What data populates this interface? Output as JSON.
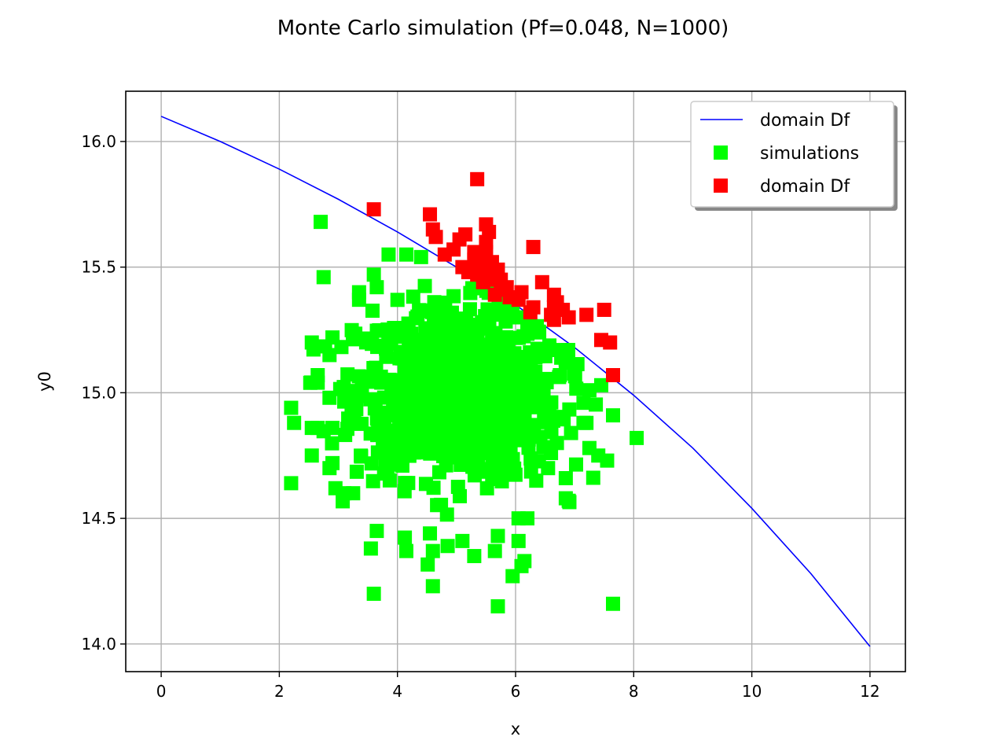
{
  "chart_data": {
    "type": "scatter",
    "title": "Monte Carlo simulation (Pf=0.048, N=1000)",
    "xlabel": "x",
    "ylabel": "y0",
    "xlim": [
      -0.6,
      12.6
    ],
    "ylim": [
      13.89,
      16.2
    ],
    "xticks": [
      0,
      2,
      4,
      6,
      8,
      10,
      12
    ],
    "yticks": [
      14.0,
      14.5,
      15.0,
      15.5,
      16.0
    ],
    "xtick_labels": [
      "0",
      "2",
      "4",
      "6",
      "8",
      "10",
      "12"
    ],
    "ytick_labels": [
      "14.0",
      "14.5",
      "15.0",
      "15.5",
      "16.0"
    ],
    "grid": true,
    "legend_position": "top-right",
    "legend": [
      {
        "label": "domain Df",
        "marker": "line",
        "color": "#0000ff"
      },
      {
        "label": "simulations",
        "marker": "square",
        "color": "#00ff00"
      },
      {
        "label": "domain Df",
        "marker": "square",
        "color": "#ff0000"
      }
    ],
    "series": [
      {
        "name": "domain Df",
        "kind": "line",
        "color": "#0000ff",
        "x": [
          0,
          1,
          2,
          3,
          4,
          5,
          6,
          7,
          8,
          9,
          10,
          11,
          12
        ],
        "y": [
          16.1,
          16.0,
          15.89,
          15.77,
          15.64,
          15.5,
          15.35,
          15.18,
          14.99,
          14.78,
          14.54,
          14.28,
          13.99
        ]
      },
      {
        "name": "simulations",
        "kind": "scatter",
        "color": "#00ff00",
        "count": 952,
        "center": [
          5.0,
          15.0
        ],
        "spread": [
          1.0,
          0.2
        ],
        "points": [
          [
            2.7,
            15.68
          ],
          [
            2.75,
            15.46
          ],
          [
            3.6,
            15.47
          ],
          [
            3.85,
            15.55
          ],
          [
            4.15,
            15.55
          ],
          [
            4.4,
            15.54
          ],
          [
            3.35,
            15.4
          ],
          [
            3.35,
            15.37
          ],
          [
            3.65,
            15.42
          ],
          [
            2.55,
            15.2
          ],
          [
            2.85,
            15.15
          ],
          [
            2.9,
            15.22
          ],
          [
            2.65,
            15.07
          ],
          [
            2.65,
            15.04
          ],
          [
            2.85,
            14.98
          ],
          [
            2.2,
            14.94
          ],
          [
            2.25,
            14.88
          ],
          [
            2.55,
            14.86
          ],
          [
            2.65,
            14.86
          ],
          [
            2.9,
            14.86
          ],
          [
            2.55,
            14.75
          ],
          [
            2.85,
            14.7
          ],
          [
            2.9,
            14.72
          ],
          [
            2.2,
            14.64
          ],
          [
            2.95,
            14.62
          ],
          [
            3.1,
            14.6
          ],
          [
            3.25,
            14.6
          ],
          [
            3.65,
            14.45
          ],
          [
            3.55,
            14.38
          ],
          [
            3.6,
            14.2
          ],
          [
            4.15,
            14.37
          ],
          [
            4.55,
            14.44
          ],
          [
            4.6,
            14.37
          ],
          [
            4.6,
            14.23
          ],
          [
            4.85,
            14.39
          ],
          [
            5.1,
            14.41
          ],
          [
            5.3,
            14.35
          ],
          [
            5.65,
            14.37
          ],
          [
            5.7,
            14.43
          ],
          [
            5.7,
            14.15
          ],
          [
            5.95,
            14.27
          ],
          [
            6.05,
            14.41
          ],
          [
            6.1,
            14.31
          ],
          [
            6.15,
            14.33
          ],
          [
            6.05,
            14.5
          ],
          [
            6.2,
            14.5
          ],
          [
            6.85,
            14.58
          ],
          [
            6.9,
            14.57
          ],
          [
            6.85,
            14.66
          ],
          [
            7.25,
            14.78
          ],
          [
            7.4,
            14.75
          ],
          [
            7.55,
            14.73
          ],
          [
            7.15,
            14.88
          ],
          [
            7.2,
            14.88
          ],
          [
            7.15,
            14.96
          ],
          [
            7.25,
            15.01
          ],
          [
            7.65,
            14.91
          ],
          [
            7.45,
            15.03
          ],
          [
            8.05,
            14.82
          ],
          [
            7.65,
            14.16
          ],
          [
            6.85,
            15.12
          ],
          [
            6.75,
            15.07
          ],
          [
            6.7,
            15.17
          ],
          [
            6.4,
            15.24
          ],
          [
            6.2,
            15.27
          ],
          [
            6.05,
            15.3
          ],
          [
            6.6,
            14.76
          ],
          [
            6.7,
            14.8
          ],
          [
            6.35,
            14.65
          ],
          [
            6.55,
            14.7
          ]
        ]
      },
      {
        "name": "domain Df",
        "kind": "scatter",
        "color": "#ff0000",
        "count": 48,
        "points": [
          [
            3.6,
            15.73
          ],
          [
            4.55,
            15.71
          ],
          [
            4.6,
            15.65
          ],
          [
            4.65,
            15.62
          ],
          [
            4.8,
            15.55
          ],
          [
            5.05,
            15.61
          ],
          [
            5.15,
            15.63
          ],
          [
            5.3,
            15.56
          ],
          [
            5.35,
            15.85
          ],
          [
            5.5,
            15.67
          ],
          [
            5.55,
            15.64
          ],
          [
            5.5,
            15.6
          ],
          [
            5.5,
            15.56
          ],
          [
            5.45,
            15.52
          ],
          [
            5.1,
            15.5
          ],
          [
            5.2,
            15.48
          ],
          [
            5.35,
            15.47
          ],
          [
            5.4,
            15.5
          ],
          [
            5.55,
            15.48
          ],
          [
            5.6,
            15.45
          ],
          [
            5.7,
            15.49
          ],
          [
            5.75,
            15.45
          ],
          [
            5.75,
            15.41
          ],
          [
            5.65,
            15.39
          ],
          [
            5.9,
            15.38
          ],
          [
            6.05,
            15.37
          ],
          [
            6.1,
            15.4
          ],
          [
            6.3,
            15.58
          ],
          [
            6.3,
            15.34
          ],
          [
            6.25,
            15.32
          ],
          [
            6.45,
            15.44
          ],
          [
            6.65,
            15.39
          ],
          [
            6.65,
            15.34
          ],
          [
            6.7,
            15.36
          ],
          [
            6.6,
            15.31
          ],
          [
            6.65,
            15.29
          ],
          [
            6.9,
            15.3
          ],
          [
            7.2,
            15.31
          ],
          [
            7.5,
            15.33
          ],
          [
            7.45,
            15.21
          ],
          [
            7.6,
            15.2
          ],
          [
            7.65,
            15.07
          ],
          [
            5.45,
            15.44
          ],
          [
            5.85,
            15.42
          ],
          [
            5.3,
            15.53
          ],
          [
            5.6,
            15.52
          ],
          [
            6.8,
            15.33
          ],
          [
            4.95,
            15.57
          ]
        ]
      }
    ]
  }
}
